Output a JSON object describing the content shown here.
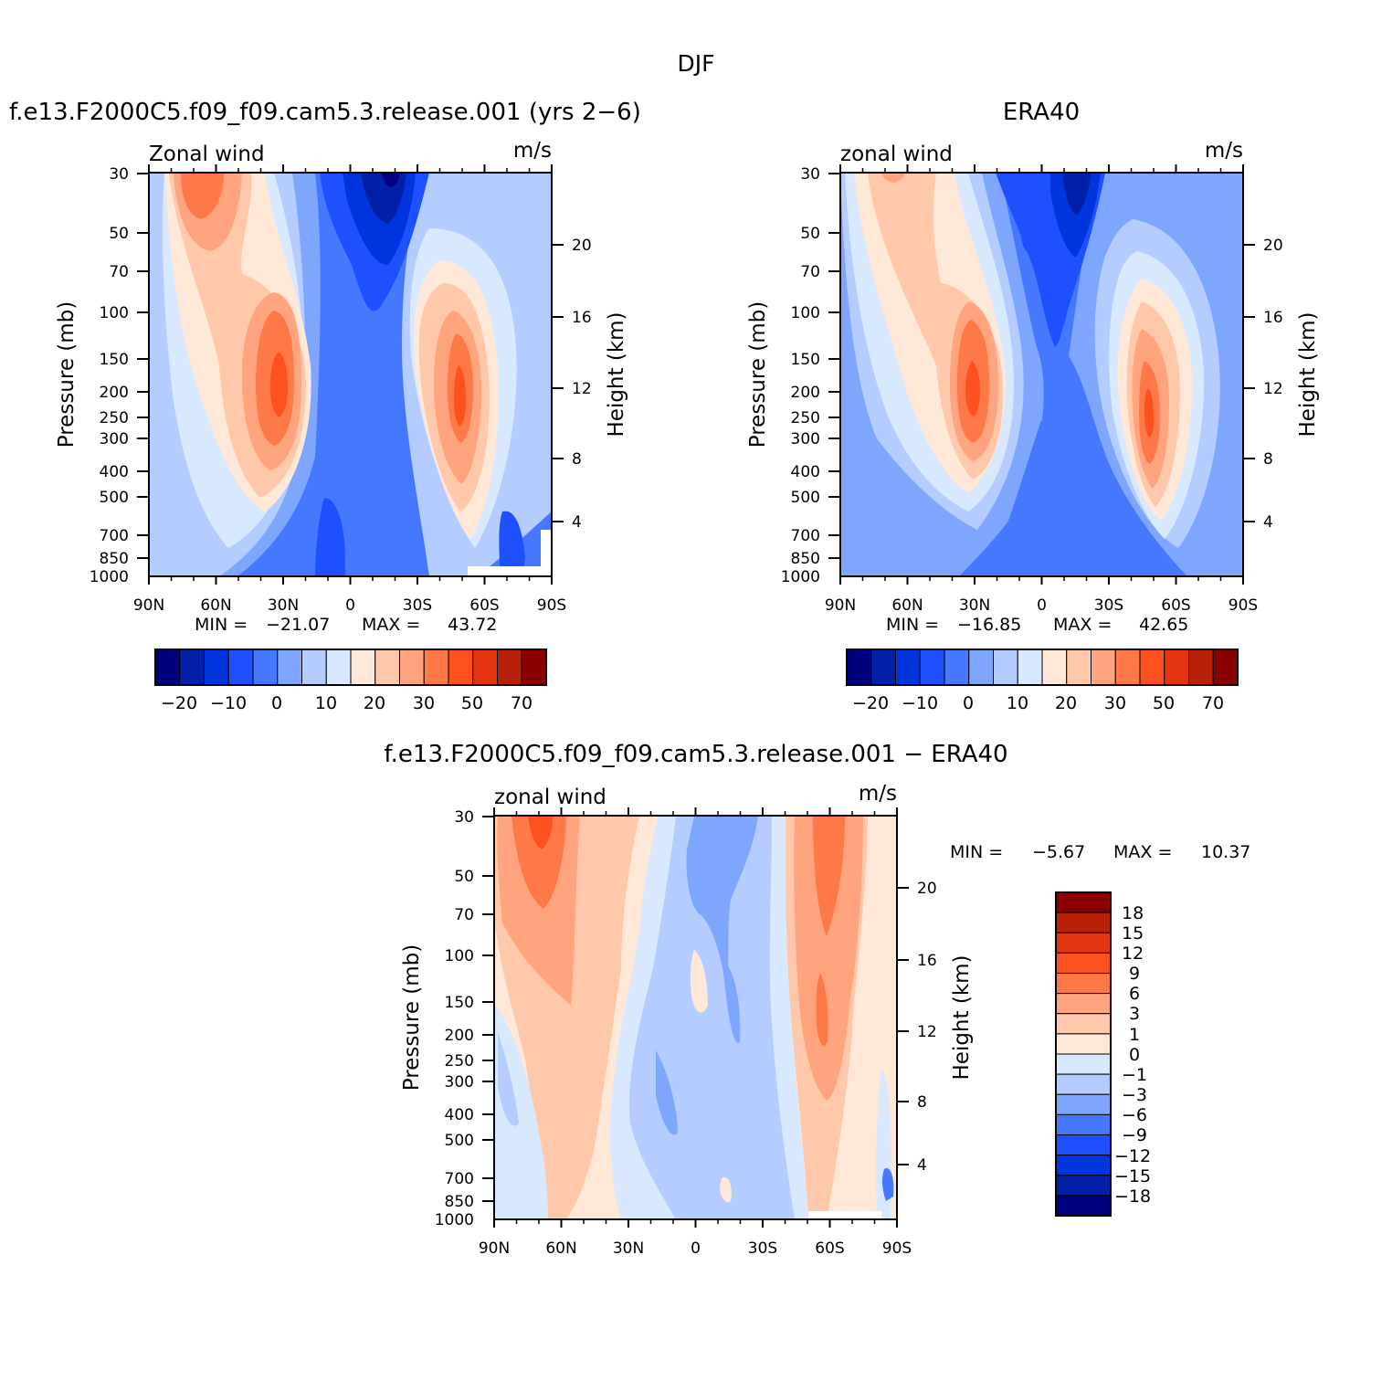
{
  "figure_title": "DJF",
  "chart_data": [
    {
      "id": "model",
      "type": "heatmap",
      "title": "f.e13.F2000C5.f09_f09.cam5.3.release.001 (yrs 2-6)",
      "corner_left": "Zonal wind",
      "corner_right": "m/s",
      "xlabel": "",
      "ylabel": "Pressure (mb)",
      "y2label": "Height (km)",
      "x_ticks": [
        "90N",
        "60N",
        "30N",
        "0",
        "30S",
        "60S",
        "90S"
      ],
      "y_ticks": [
        "30",
        "50",
        "70",
        "100",
        "150",
        "200",
        "250",
        "300",
        "400",
        "500",
        "700",
        "850",
        "1000"
      ],
      "y2_ticks": [
        "20",
        "16",
        "12",
        "8",
        "4"
      ],
      "min_label": "MIN =",
      "min_value": "-21.07",
      "max_label": "MAX =",
      "max_value": "43.72",
      "colorbar_labels": [
        "-20",
        "-10",
        "0",
        "10",
        "20",
        "30",
        "50",
        "70"
      ]
    },
    {
      "id": "obs",
      "type": "heatmap",
      "title": "ERA40",
      "corner_left": "zonal wind",
      "corner_right": "m/s",
      "xlabel": "",
      "ylabel": "Pressure (mb)",
      "y2label": "Height (km)",
      "x_ticks": [
        "90N",
        "60N",
        "30N",
        "0",
        "30S",
        "60S",
        "90S"
      ],
      "y_ticks": [
        "30",
        "50",
        "70",
        "100",
        "150",
        "200",
        "250",
        "300",
        "400",
        "500",
        "700",
        "850",
        "1000"
      ],
      "y2_ticks": [
        "20",
        "16",
        "12",
        "8",
        "4"
      ],
      "min_label": "MIN =",
      "min_value": "-16.85",
      "max_label": "MAX =",
      "max_value": "42.65",
      "colorbar_labels": [
        "-20",
        "-10",
        "0",
        "10",
        "20",
        "30",
        "50",
        "70"
      ]
    },
    {
      "id": "diff",
      "type": "heatmap",
      "title": "f.e13.F2000C5.f09_f09.cam5.3.release.001 - ERA40",
      "corner_left": "zonal wind",
      "corner_right": "m/s",
      "xlabel": "",
      "ylabel": "Pressure (mb)",
      "y2label": "Height (km)",
      "x_ticks": [
        "90N",
        "60N",
        "30N",
        "0",
        "30S",
        "60S",
        "90S"
      ],
      "y_ticks": [
        "30",
        "50",
        "70",
        "100",
        "150",
        "200",
        "250",
        "300",
        "400",
        "500",
        "700",
        "850",
        "1000"
      ],
      "y2_ticks": [
        "20",
        "16",
        "12",
        "8",
        "4"
      ],
      "min_label": "MIN =",
      "min_value": "-5.67",
      "max_label": "MAX =",
      "max_value": "10.37",
      "colorbar_labels": [
        "18",
        "15",
        "12",
        "9",
        "6",
        "3",
        "1",
        "0",
        "-1",
        "-3",
        "-6",
        "-9",
        "-12",
        "-15",
        "-18"
      ]
    }
  ],
  "palette": [
    "#00007f",
    "#0020a8",
    "#0034dc",
    "#1e50ff",
    "#4678ff",
    "#7fa6ff",
    "#b4ccff",
    "#d8e8ff",
    "#ffe8d8",
    "#ffc8aa",
    "#ffa47e",
    "#ff7848",
    "#ff5020",
    "#e43410",
    "#b82008",
    "#8a0000"
  ]
}
